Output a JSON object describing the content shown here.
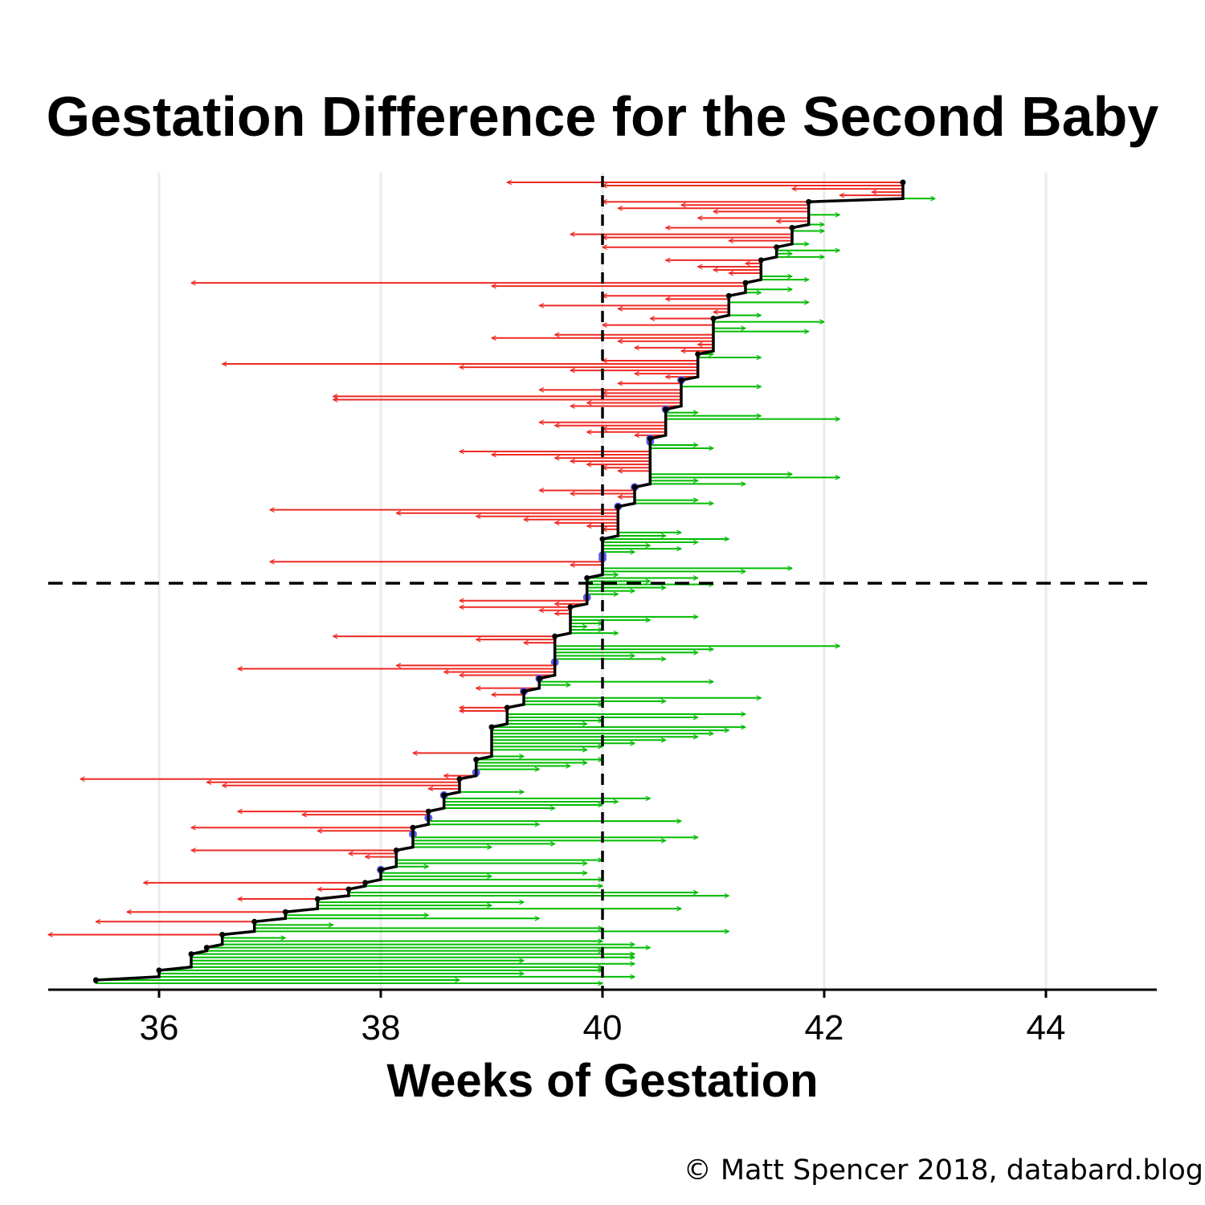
{
  "chart_data": {
    "type": "arrow-range",
    "title": "Gestation Difference for the Second Baby",
    "xlabel": "Weeks of Gestation",
    "ylabel": "",
    "xlim": [
      35,
      45
    ],
    "xticks": [
      36,
      38,
      40,
      42,
      44
    ],
    "grid": "vertical",
    "reference_lines": {
      "x": 40,
      "y_fraction_label": "median first baby"
    },
    "colors": {
      "earlier": "#ee2a24",
      "later": "#00bb00",
      "same": "#5b5bee",
      "first_baby": "#000000"
    },
    "groups": [
      {
        "first": 42.71,
        "second": [
          39.14,
          40.0,
          41.71,
          42.43,
          42.14,
          43.0
        ]
      },
      {
        "first": 41.86,
        "second": [
          40.0,
          40.71,
          40.14,
          41.0,
          42.14,
          40.86,
          41.57,
          42.0
        ]
      },
      {
        "first": 41.71,
        "second": [
          40.57,
          42.0,
          39.71,
          40.0,
          41.14,
          41.86
        ]
      },
      {
        "first": 41.57,
        "second": [
          40.0,
          42.14,
          41.71,
          42.0
        ]
      },
      {
        "first": 41.43,
        "second": [
          40.57,
          41.29,
          40.86,
          41.0,
          41.14,
          41.71,
          41.86
        ]
      },
      {
        "first": 41.29,
        "second": [
          36.29,
          39.0,
          41.71,
          41.43
        ]
      },
      {
        "first": 41.14,
        "second": [
          40.0,
          40.57,
          41.86,
          39.43,
          40.14,
          41.0,
          41.43
        ]
      },
      {
        "first": 41.0,
        "second": [
          40.43,
          42.0,
          40.0,
          41.29,
          41.86,
          39.57,
          39.0,
          40.14,
          40.86,
          40.29,
          40.71
        ]
      },
      {
        "first": 40.86,
        "second": [
          41.0,
          41.43,
          40.0,
          36.57,
          38.71,
          39.71,
          40.29,
          40.57
        ]
      },
      {
        "first": 40.71,
        "second": [
          40.71,
          40.14,
          41.43,
          39.43,
          40.0,
          37.57,
          37.57,
          39.86,
          39.71
        ]
      },
      {
        "first": 40.57,
        "second": [
          40.57,
          40.86,
          41.43,
          42.14,
          39.43,
          39.57,
          40.0,
          39.86,
          40.29
        ]
      },
      {
        "first": 40.43,
        "second": [
          40.43,
          40.43,
          40.86,
          41.0,
          38.71,
          39.0,
          39.57,
          39.71,
          39.86,
          40.0,
          40.14,
          41.71,
          42.14,
          40.86,
          41.29
        ]
      },
      {
        "first": 40.29,
        "second": [
          40.29,
          39.43,
          39.71,
          40.14,
          40.86,
          41.0
        ]
      },
      {
        "first": 40.14,
        "second": [
          40.14,
          37.0,
          38.14,
          38.86,
          39.29,
          39.57,
          39.86,
          40.0,
          40.71,
          40.57
        ]
      },
      {
        "first": 40.0,
        "second": [
          41.14,
          40.86,
          40.43,
          40.71,
          40.29,
          40.0,
          40.0,
          37.0,
          39.71,
          41.71,
          41.29,
          40.14
        ]
      },
      {
        "first": 39.86,
        "second": [
          40.86,
          40.43,
          41.0,
          40.57,
          40.29,
          40.14,
          39.86,
          38.71,
          39.57
        ]
      },
      {
        "first": 39.71,
        "second": [
          38.71,
          39.43,
          39.57,
          40.86,
          40.43,
          40.0,
          39.86,
          40.0,
          40.14
        ]
      },
      {
        "first": 39.57,
        "second": [
          37.57,
          38.86,
          39.29,
          42.14,
          41.0,
          40.86,
          40.29,
          40.57,
          39.57,
          38.14,
          36.71,
          38.57,
          38.71
        ]
      },
      {
        "first": 39.43,
        "second": [
          39.43,
          41.0,
          39.71,
          38.86
        ]
      },
      {
        "first": 39.29,
        "second": [
          39.29,
          39.0,
          41.43,
          40.57,
          40.0
        ]
      },
      {
        "first": 39.14,
        "second": [
          38.71,
          38.71,
          41.29,
          40.86,
          40.0,
          39.86
        ]
      },
      {
        "first": 39.0,
        "second": [
          41.29,
          41.14,
          41.0,
          40.86,
          40.57,
          40.29,
          40.0,
          39.86,
          38.29,
          39.29
        ]
      },
      {
        "first": 38.86,
        "second": [
          40.0,
          39.86,
          39.71,
          39.43,
          38.86,
          38.57
        ]
      },
      {
        "first": 38.71,
        "second": [
          35.29,
          36.43,
          36.57,
          38.43,
          39.29
        ]
      },
      {
        "first": 38.57,
        "second": [
          38.57,
          40.43,
          40.14,
          40.0,
          39.57
        ]
      },
      {
        "first": 38.43,
        "second": [
          36.71,
          37.29,
          38.43,
          40.71,
          39.43
        ]
      },
      {
        "first": 38.29,
        "second": [
          36.29,
          37.43,
          38.29,
          40.86,
          40.57,
          39.57,
          39.0
        ]
      },
      {
        "first": 38.14,
        "second": [
          36.29,
          37.71,
          37.86,
          40.0,
          39.86,
          38.43
        ]
      },
      {
        "first": 38.0,
        "second": [
          38.0,
          39.86,
          39.0,
          40.0
        ]
      },
      {
        "first": 37.86,
        "second": [
          35.86,
          40.0
        ]
      },
      {
        "first": 37.71,
        "second": [
          37.43,
          40.86,
          41.14
        ]
      },
      {
        "first": 37.43,
        "second": [
          36.71,
          39.29,
          39.0,
          40.71
        ]
      },
      {
        "first": 37.14,
        "second": [
          35.71,
          38.43,
          39.43
        ]
      },
      {
        "first": 36.86,
        "second": [
          35.43,
          37.57,
          40.0,
          41.14
        ]
      },
      {
        "first": 36.57,
        "second": [
          35.0,
          37.14,
          40.0,
          40.29
        ]
      },
      {
        "first": 36.43,
        "second": [
          40.43,
          40.0
        ]
      },
      {
        "first": 36.29,
        "second": [
          40.29,
          40.29,
          39.29,
          40.29,
          40.0
        ]
      },
      {
        "first": 36.0,
        "second": [
          40.0,
          39.29,
          40.29
        ]
      },
      {
        "first": 35.43,
        "second": [
          38.71,
          40.0
        ]
      }
    ]
  },
  "credit": "© Matt Spencer 2018, databard.blog"
}
